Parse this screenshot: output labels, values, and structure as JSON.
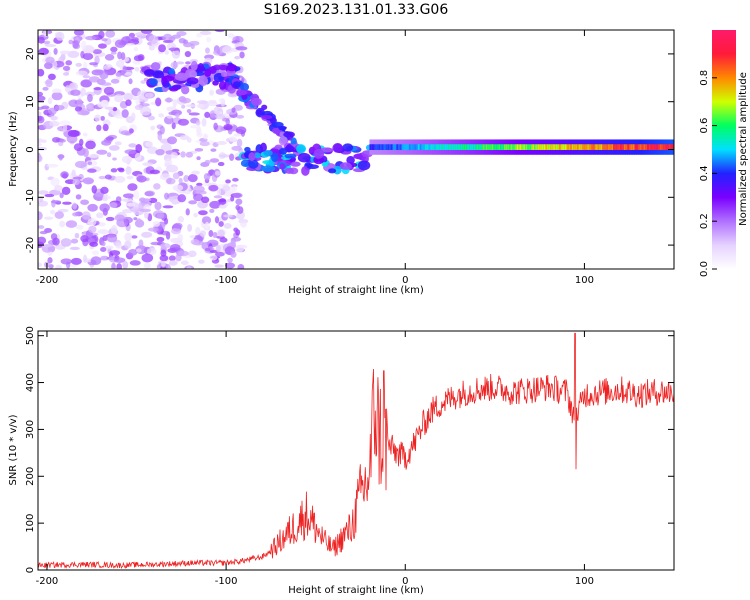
{
  "figure_title": "S169.2023.131.01.33.G06",
  "colors": {
    "snr_line": "#ee2222",
    "axes": "#000000",
    "colormap": [
      "#ffffff",
      "#e6d2ff",
      "#b070ff",
      "#7a00ff",
      "#2222ff",
      "#00e0ff",
      "#00ff60",
      "#d0ff00",
      "#ff8800",
      "#ff1a3a",
      "#ff1a6a"
    ]
  },
  "chart_data": [
    {
      "type": "heatmap",
      "xlabel": "Height of straight line (km)",
      "ylabel": "Frequency (Hz)",
      "xlim": [
        -205,
        150
      ],
      "ylim": [
        -25,
        25
      ],
      "xticks": [
        -200,
        -100,
        0,
        100
      ],
      "yticks": [
        -20,
        -10,
        0,
        10,
        20
      ],
      "colorbar": {
        "label": "Normalized spectral amplitude",
        "range": [
          0.0,
          1.0
        ],
        "ticks": [
          0.0,
          0.2,
          0.4,
          0.6,
          0.8
        ]
      },
      "features": [
        {
          "region": "scattered low-amplitude noise",
          "x_range": [
            -205,
            -90
          ],
          "y_range": [
            -25,
            25
          ],
          "amplitude": 0.1
        },
        {
          "region": "upper branch",
          "x_range": [
            -145,
            -95
          ],
          "y_center": 15,
          "amplitude": 0.3
        },
        {
          "region": "descending branch",
          "x_range": [
            -95,
            -60
          ],
          "y_from": 14,
          "y_to": 0,
          "amplitude": 0.3
        },
        {
          "region": "lower branch",
          "x_range": [
            -90,
            -20
          ],
          "y_center": -2,
          "amplitude": 0.35
        },
        {
          "region": "main line",
          "x_range": [
            -20,
            150
          ],
          "y_center": 0.5,
          "amplitude_from": 0.4,
          "amplitude_to": 0.95
        }
      ]
    },
    {
      "type": "line",
      "xlabel": "Height of straight line (km)",
      "ylabel": "SNR (10 * v/v)",
      "xlim": [
        -205,
        150
      ],
      "ylim": [
        0,
        510
      ],
      "xticks": [
        -200,
        -100,
        0,
        100
      ],
      "yticks": [
        0,
        100,
        200,
        300,
        400,
        500
      ],
      "series": [
        {
          "x": [
            -205,
            -180,
            -160,
            -140,
            -120,
            -100,
            -90,
            -80,
            -75,
            -70,
            -65,
            -60,
            -55,
            -50,
            -45,
            -40,
            -35,
            -30,
            -25,
            -20,
            -17,
            -15,
            -12,
            -10,
            -5,
            0,
            5,
            10,
            15,
            20,
            25,
            30,
            40,
            50,
            60,
            70,
            80,
            90,
            95,
            100,
            110,
            120,
            130,
            140,
            150
          ],
          "y": [
            10,
            12,
            10,
            12,
            15,
            15,
            20,
            28,
            40,
            60,
            80,
            100,
            120,
            90,
            60,
            45,
            70,
            90,
            160,
            200,
            360,
            300,
            270,
            270,
            250,
            240,
            270,
            310,
            340,
            355,
            365,
            375,
            385,
            390,
            380,
            385,
            390,
            380,
            320,
            375,
            380,
            385,
            375,
            380,
            380
          ]
        }
      ]
    }
  ]
}
